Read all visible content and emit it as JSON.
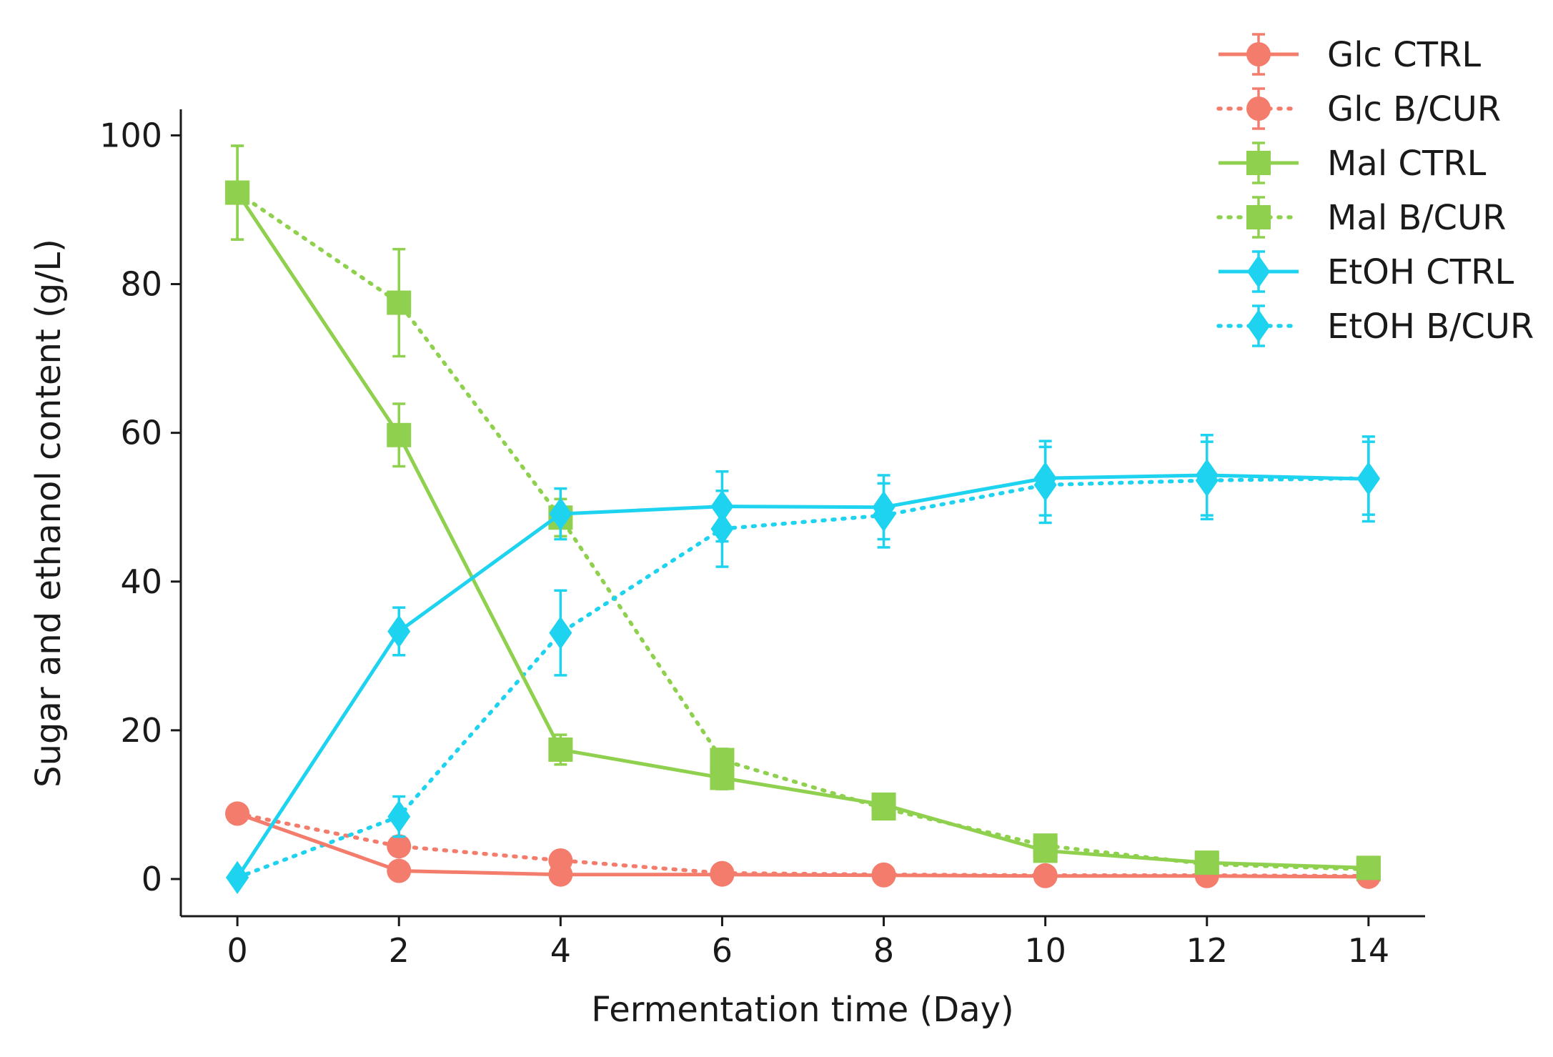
{
  "chart_data": {
    "type": "line",
    "title": "",
    "xlabel": "Fermentation time (Day)",
    "ylabel": "Sugar and ethanol content (g/L)",
    "x": [
      0,
      2,
      4,
      6,
      8,
      10,
      12,
      14
    ],
    "xticks": [
      "0",
      "2",
      "4",
      "6",
      "8",
      "10",
      "12",
      "14"
    ],
    "yticks": [
      "0",
      "20",
      "40",
      "60",
      "80",
      "100"
    ],
    "xlim": [
      -0.7,
      14.7
    ],
    "ylim": [
      -5,
      103.5
    ],
    "grid": false,
    "legend_position": "top-right",
    "series": [
      {
        "name": "Glc CTRL",
        "color": "#f47c6c",
        "marker": "circle",
        "linestyle": "solid",
        "values": [
          8.8,
          1.1,
          0.6,
          0.6,
          0.5,
          0.4,
          0.4,
          0.3
        ],
        "errors": [
          0.8,
          0.4,
          0.3,
          0.3,
          0.3,
          0.3,
          0.3,
          0.3
        ]
      },
      {
        "name": "Glc B/CUR",
        "color": "#f47c6c",
        "marker": "circle",
        "linestyle": "dotted",
        "values": [
          8.8,
          4.4,
          2.5,
          0.8,
          0.6,
          0.5,
          0.5,
          0.4
        ],
        "errors": [
          0.8,
          0.6,
          0.4,
          0.3,
          0.3,
          0.3,
          0.3,
          0.3
        ]
      },
      {
        "name": "Mal CTRL",
        "color": "#8fd14f",
        "marker": "square",
        "linestyle": "solid",
        "values": [
          92.3,
          59.7,
          17.4,
          13.6,
          10.0,
          3.8,
          2.2,
          1.5
        ],
        "errors": [
          6.3,
          4.2,
          2.0,
          1.5,
          1.0,
          0.8,
          0.6,
          0.5
        ]
      },
      {
        "name": "Mal B/CUR",
        "color": "#8fd14f",
        "marker": "square",
        "linestyle": "dotted",
        "values": [
          92.3,
          77.5,
          48.6,
          16.0,
          9.5,
          4.5,
          2.0,
          1.3
        ],
        "errors": [
          6.3,
          7.2,
          2.5,
          1.5,
          1.0,
          0.8,
          0.6,
          0.5
        ]
      },
      {
        "name": "EtOH CTRL",
        "color": "#1ed3f0",
        "marker": "diamond",
        "linestyle": "solid",
        "values": [
          0.2,
          33.3,
          49.1,
          50.1,
          50.0,
          53.9,
          54.3,
          53.8
        ],
        "errors": [
          0.5,
          3.2,
          3.4,
          4.7,
          4.3,
          5.0,
          5.4,
          5.7
        ]
      },
      {
        "name": "EtOH B/CUR",
        "color": "#1ed3f0",
        "marker": "diamond",
        "linestyle": "dotted",
        "values": [
          0.2,
          8.4,
          33.1,
          47.1,
          48.9,
          53.0,
          53.6,
          53.9
        ],
        "errors": [
          0.5,
          2.7,
          5.7,
          5.1,
          4.3,
          5.1,
          5.2,
          4.9
        ]
      }
    ]
  }
}
